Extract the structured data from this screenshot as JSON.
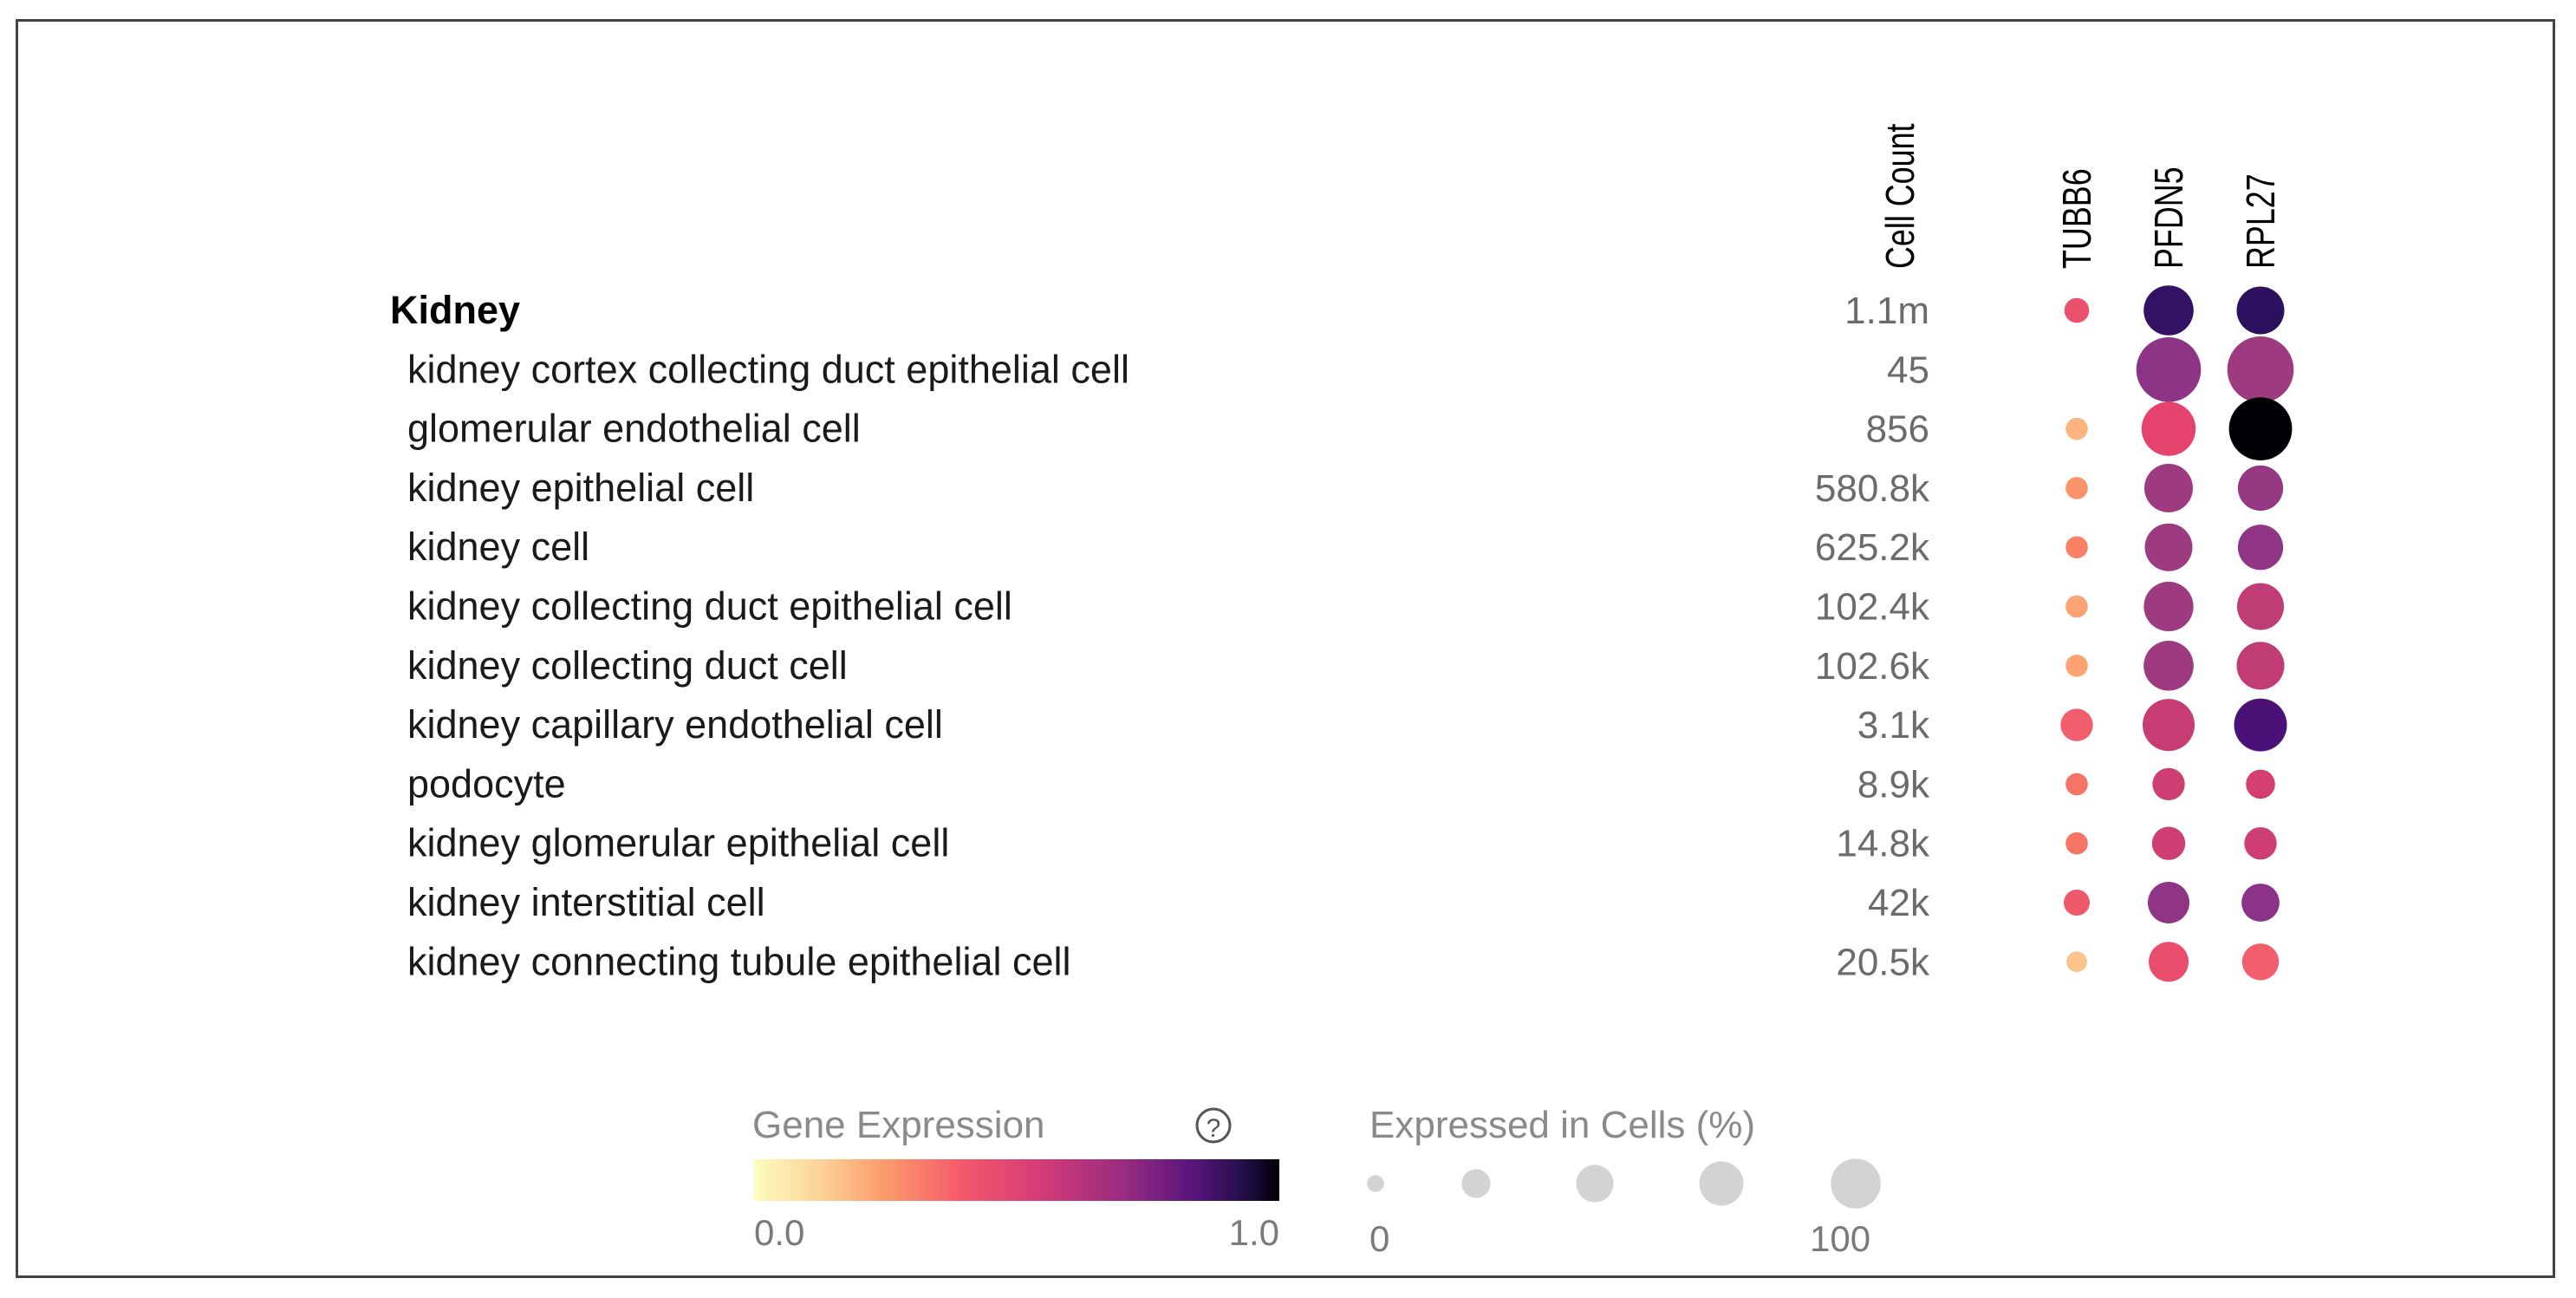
{
  "chart_data": {
    "type": "dot",
    "column_header_count": "Cell Count",
    "genes": [
      "TUBB6",
      "PFDN5",
      "RPL27"
    ],
    "tissue": {
      "label": "Kidney",
      "count": "1.1m",
      "expression": [
        0.35,
        0.88,
        0.9
      ],
      "percent": [
        6,
        45,
        40
      ]
    },
    "rows": [
      {
        "label": "kidney cortex collecting duct epithelial cell",
        "count": "45",
        "expression": [
          null,
          0.65,
          0.6
        ],
        "percent": [
          0,
          85,
          90
        ]
      },
      {
        "label": "glomerular endothelial cell",
        "count": "856",
        "expression": [
          0.1,
          0.4,
          1.0
        ],
        "percent": [
          4,
          55,
          80
        ]
      },
      {
        "label": "kidney epithelial cell",
        "count": "580.8k",
        "expression": [
          0.18,
          0.6,
          0.62
        ],
        "percent": [
          4,
          42,
          35
        ]
      },
      {
        "label": "kidney cell",
        "count": "625.2k",
        "expression": [
          0.22,
          0.6,
          0.64
        ],
        "percent": [
          4,
          40,
          35
        ]
      },
      {
        "label": "kidney collecting duct epithelial cell",
        "count": "102.4k",
        "expression": [
          0.14,
          0.6,
          0.52
        ],
        "percent": [
          4,
          44,
          38
        ]
      },
      {
        "label": "kidney collecting duct cell",
        "count": "102.6k",
        "expression": [
          0.14,
          0.6,
          0.52
        ],
        "percent": [
          4,
          45,
          40
        ]
      },
      {
        "label": "kidney capillary endothelial cell",
        "count": "3.1k",
        "expression": [
          0.3,
          0.5,
          0.82
        ],
        "percent": [
          14,
          50,
          52
        ]
      },
      {
        "label": "podocyte",
        "count": "8.9k",
        "expression": [
          0.25,
          0.48,
          0.46
        ],
        "percent": [
          4,
          14,
          10
        ]
      },
      {
        "label": "kidney glomerular epithelial cell",
        "count": "14.8k",
        "expression": [
          0.25,
          0.48,
          0.48
        ],
        "percent": [
          4,
          15,
          14
        ]
      },
      {
        "label": "kidney interstitial cell",
        "count": "42k",
        "expression": [
          0.32,
          0.64,
          0.66
        ],
        "percent": [
          7,
          28,
          22
        ]
      },
      {
        "label": "kidney connecting tubule epithelial cell",
        "count": "20.5k",
        "expression": [
          0.08,
          0.36,
          0.3
        ],
        "percent": [
          3,
          25,
          20
        ]
      }
    ],
    "legend": {
      "color_title": "Gene Expression",
      "color_min_label": "0.0",
      "color_max_label": "1.0",
      "size_title": "Expressed in Cells (%)",
      "size_min_label": "0",
      "size_max_label": "100",
      "size_steps": [
        5,
        25,
        50,
        75,
        100
      ]
    },
    "colormap": [
      "#fcfdbf",
      "#fdb47f",
      "#fc8961",
      "#f05f6b",
      "#e5426e",
      "#c73d73",
      "#9e3a7f",
      "#7c2e8f",
      "#51127c",
      "#2c115f",
      "#000004"
    ]
  }
}
